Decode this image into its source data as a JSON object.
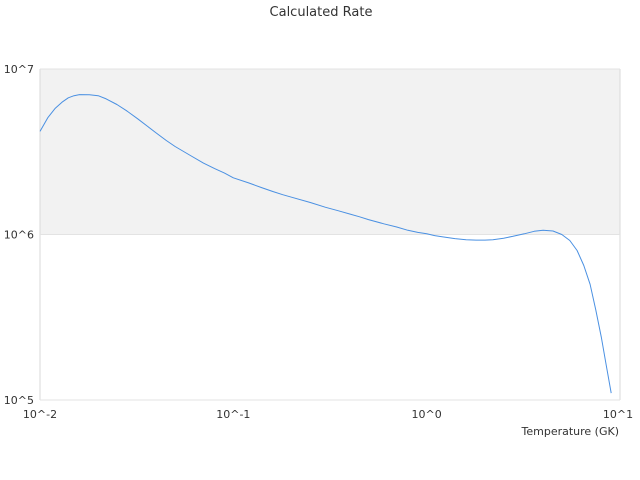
{
  "chart_data": {
    "type": "line",
    "title": "Calculated Rate",
    "xlabel": "Temperature (GK)",
    "ylabel": "",
    "x_scale": "log",
    "y_scale": "log",
    "xlim": [
      0.01,
      10
    ],
    "ylim": [
      100000,
      10000000
    ],
    "x_ticks": [
      {
        "value": 0.01,
        "label": "10^-2"
      },
      {
        "value": 0.1,
        "label": "10^-1"
      },
      {
        "value": 1,
        "label": "10^0"
      },
      {
        "value": 10,
        "label": "10^1"
      }
    ],
    "y_ticks": [
      {
        "value": 100000,
        "label": "10^5"
      },
      {
        "value": 1000000,
        "label": "10^6"
      },
      {
        "value": 10000000,
        "label": "10^7"
      }
    ],
    "band_colors": [
      "#f2f2f2",
      "#ffffff"
    ],
    "line_color": "#4a90e2",
    "grid": false,
    "series": [
      {
        "x": [
          0.01,
          0.011,
          0.012,
          0.013,
          0.014,
          0.015,
          0.016,
          0.018,
          0.02,
          0.022,
          0.025,
          0.028,
          0.032,
          0.036,
          0.04,
          0.045,
          0.05,
          0.06,
          0.07,
          0.08,
          0.09,
          0.1,
          0.12,
          0.14,
          0.16,
          0.18,
          0.2,
          0.25,
          0.3,
          0.35,
          0.4,
          0.45,
          0.5,
          0.6,
          0.7,
          0.8,
          0.9,
          1.0,
          1.1,
          1.2,
          1.4,
          1.6,
          1.8,
          2.0,
          2.2,
          2.5,
          2.8,
          3.2,
          3.6,
          4.0,
          4.5,
          5.0,
          5.5,
          6.0,
          6.5,
          7.0,
          7.5,
          8.0,
          8.5,
          9.0
        ],
        "y": [
          4200000,
          5100000,
          5800000,
          6300000,
          6700000,
          6900000,
          7000000,
          6980000,
          6900000,
          6600000,
          6100000,
          5600000,
          5000000,
          4500000,
          4100000,
          3700000,
          3400000,
          3000000,
          2700000,
          2500000,
          2350000,
          2200000,
          2050000,
          1920000,
          1820000,
          1740000,
          1680000,
          1560000,
          1460000,
          1390000,
          1330000,
          1280000,
          1230000,
          1160000,
          1110000,
          1060000,
          1030000,
          1010000,
          985000,
          970000,
          945000,
          930000,
          925000,
          925000,
          930000,
          950000,
          975000,
          1010000,
          1045000,
          1060000,
          1050000,
          1000000,
          920000,
          800000,
          650000,
          500000,
          350000,
          240000,
          160000,
          110000
        ]
      }
    ]
  }
}
